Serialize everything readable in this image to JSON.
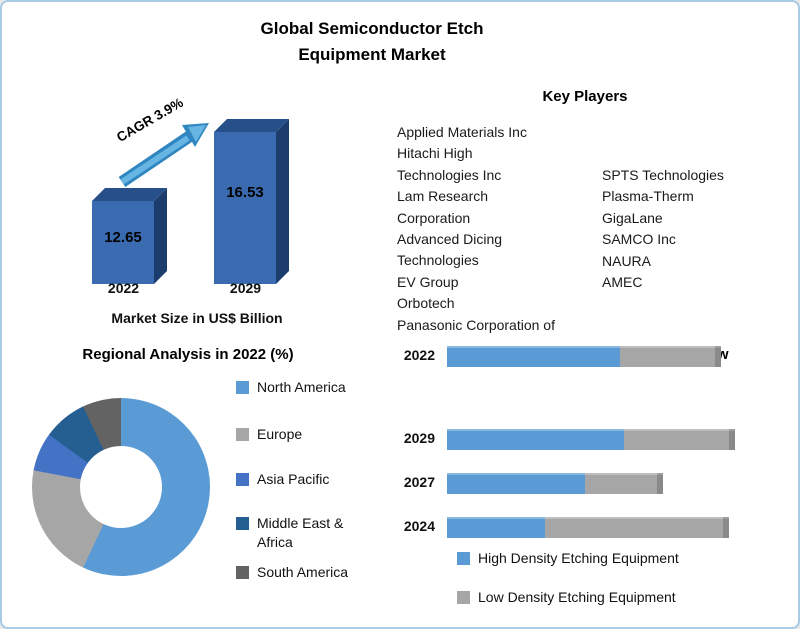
{
  "title": "Global Semiconductor Etch\nEquipment Market",
  "key_players": {
    "heading": "Key Players",
    "col1": [
      "Applied Materials Inc",
      "Hitachi High",
      "Technologies Inc",
      "Lam Research",
      "Corporation",
      "Advanced Dicing",
      "Technologies",
      "EV Group",
      "Orbotech",
      "Panasonic Corporation of"
    ],
    "col2": [
      "SPTS Technologies",
      "Plasma-Therm",
      "GigaLane",
      "SAMCO Inc",
      "NAURA",
      "AMEC"
    ]
  },
  "chart_data": [
    {
      "type": "bar",
      "title": "Market Size in US$ Billion",
      "categories": [
        "2022",
        "2029"
      ],
      "values": [
        12.65,
        16.53
      ],
      "annotation": "CAGR 3.9%",
      "ylim": [
        8,
        17
      ],
      "bar_color": "#3a6bb0"
    },
    {
      "type": "pie",
      "subtype": "donut",
      "title": "Regional Analysis in 2022 (%)",
      "labels": [
        "North America",
        "Europe",
        "Asia Pacific",
        "Middle East & Africa",
        "South America"
      ],
      "values": [
        57,
        21,
        7,
        8,
        7
      ],
      "colors": [
        "#5B9BD5",
        "#A6A6A6",
        "#4472C4",
        "#255E91",
        "#636363"
      ],
      "legend_position": "right"
    },
    {
      "type": "bar",
      "subtype": "stacked-horizontal",
      "title": "Product Type Segment Overview",
      "categories": [
        "2029",
        "2027",
        "2024",
        "2022"
      ],
      "x_max": 100,
      "series": [
        {
          "name": "High Density Etching Equipment",
          "color": "#5B9BD5",
          "values": [
            62,
            48,
            34,
            60
          ]
        },
        {
          "name": "Low Density Etching Equipment",
          "color": "#A6A6A6",
          "values": [
            37,
            25,
            62,
            33
          ]
        }
      ]
    }
  ]
}
